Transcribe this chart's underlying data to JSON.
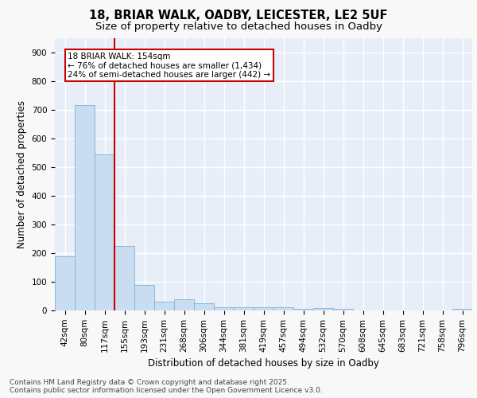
{
  "title_line1": "18, BRIAR WALK, OADBY, LEICESTER, LE2 5UF",
  "title_line2": "Size of property relative to detached houses in Oadby",
  "xlabel": "Distribution of detached houses by size in Oadby",
  "ylabel": "Number of detached properties",
  "bar_labels": [
    "42sqm",
    "80sqm",
    "117sqm",
    "155sqm",
    "193sqm",
    "231sqm",
    "268sqm",
    "306sqm",
    "344sqm",
    "381sqm",
    "419sqm",
    "457sqm",
    "494sqm",
    "532sqm",
    "570sqm",
    "608sqm",
    "645sqm",
    "683sqm",
    "721sqm",
    "758sqm",
    "796sqm"
  ],
  "bar_values": [
    190,
    715,
    545,
    225,
    90,
    30,
    38,
    25,
    12,
    10,
    10,
    10,
    5,
    7,
    5,
    0,
    0,
    0,
    0,
    0,
    5
  ],
  "bar_color": "#c8ddf0",
  "bar_edge_color": "#7fb0d8",
  "fig_bg_color": "#f8f8f8",
  "plot_bg_color": "#e8eef8",
  "grid_color": "#ffffff",
  "vline_x_index": 3,
  "vline_color": "#cc0000",
  "annotation_text": "18 BRIAR WALK: 154sqm\n← 76% of detached houses are smaller (1,434)\n24% of semi-detached houses are larger (442) →",
  "annotation_box_color": "#cc0000",
  "ylim": [
    0,
    950
  ],
  "yticks": [
    0,
    100,
    200,
    300,
    400,
    500,
    600,
    700,
    800,
    900
  ],
  "footer_text": "Contains HM Land Registry data © Crown copyright and database right 2025.\nContains public sector information licensed under the Open Government Licence v3.0.",
  "title_fontsize": 10.5,
  "subtitle_fontsize": 9.5,
  "label_fontsize": 8.5,
  "tick_fontsize": 7.5,
  "annotation_fontsize": 7.5,
  "footer_fontsize": 6.5
}
